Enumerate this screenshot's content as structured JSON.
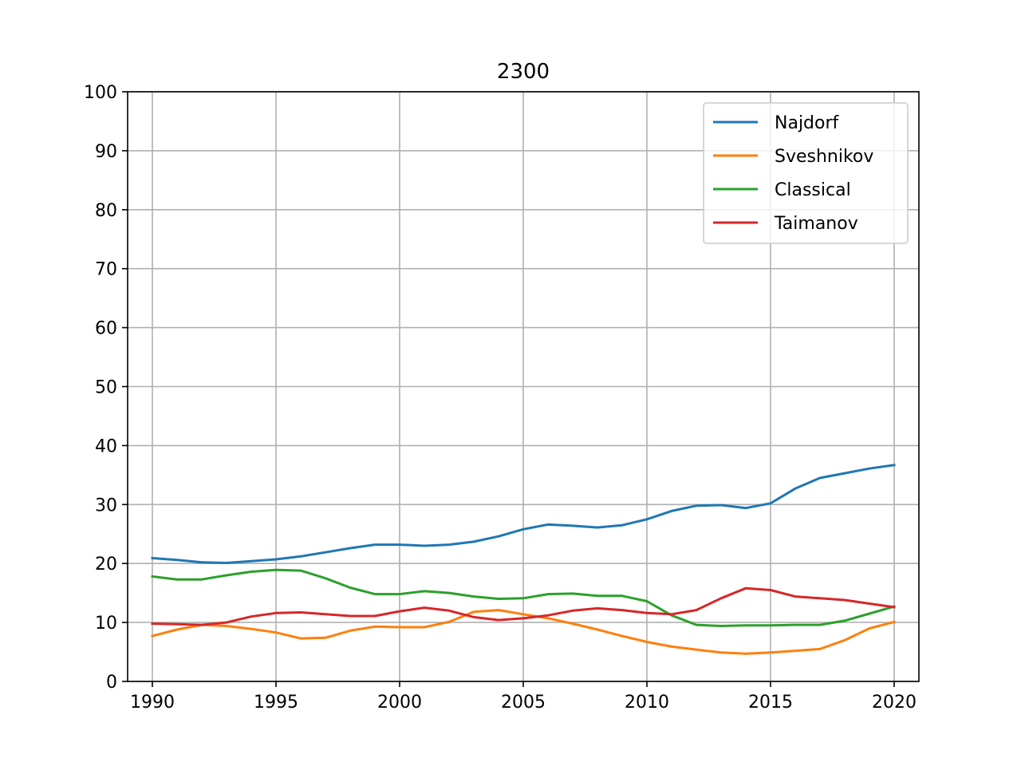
{
  "chart_data": {
    "type": "line",
    "title": "2300",
    "xlabel": "",
    "ylabel": "",
    "xlim": [
      1989,
      2021
    ],
    "ylim": [
      0,
      100
    ],
    "xticks": [
      1990,
      1995,
      2000,
      2005,
      2010,
      2015,
      2020
    ],
    "yticks": [
      0,
      10,
      20,
      30,
      40,
      50,
      60,
      70,
      80,
      90,
      100
    ],
    "grid": true,
    "legend_position": "top-right",
    "x": [
      1990,
      1991,
      1992,
      1993,
      1994,
      1995,
      1996,
      1997,
      1998,
      1999,
      2000,
      2001,
      2002,
      2003,
      2004,
      2005,
      2006,
      2007,
      2008,
      2009,
      2010,
      2011,
      2012,
      2013,
      2014,
      2015,
      2016,
      2017,
      2018,
      2019,
      2020
    ],
    "series": [
      {
        "name": "Najdorf",
        "color": "#1f77b4",
        "values": [
          20.9,
          20.6,
          20.2,
          20.1,
          20.4,
          20.7,
          21.2,
          21.9,
          22.6,
          23.2,
          23.2,
          23.0,
          23.2,
          23.7,
          24.6,
          25.8,
          26.6,
          26.4,
          26.1,
          26.5,
          27.5,
          28.9,
          29.8,
          29.9,
          29.4,
          30.2,
          32.7,
          34.5,
          35.3,
          36.1,
          36.7
        ]
      },
      {
        "name": "Sveshnikov",
        "color": "#ff7f0e",
        "values": [
          7.7,
          8.8,
          9.6,
          9.4,
          8.9,
          8.3,
          7.3,
          7.4,
          8.6,
          9.3,
          9.2,
          9.2,
          10.1,
          11.8,
          12.1,
          11.4,
          10.7,
          9.8,
          8.8,
          7.7,
          6.7,
          5.9,
          5.4,
          4.9,
          4.7,
          4.9,
          5.2,
          5.5,
          7.0,
          9.0,
          10.1
        ]
      },
      {
        "name": "Classical",
        "color": "#2ca02c",
        "values": [
          17.8,
          17.3,
          17.3,
          18.0,
          18.6,
          18.9,
          18.8,
          17.5,
          15.9,
          14.8,
          14.8,
          15.3,
          15.0,
          14.4,
          14.0,
          14.1,
          14.8,
          14.9,
          14.5,
          14.5,
          13.6,
          11.2,
          9.6,
          9.4,
          9.5,
          9.5,
          9.6,
          9.6,
          10.3,
          11.5,
          12.7
        ]
      },
      {
        "name": "Taimanov",
        "color": "#d62728",
        "values": [
          9.8,
          9.7,
          9.6,
          10.0,
          11.0,
          11.6,
          11.7,
          11.4,
          11.1,
          11.1,
          11.9,
          12.5,
          12.0,
          10.9,
          10.4,
          10.7,
          11.2,
          12.0,
          12.4,
          12.1,
          11.6,
          11.4,
          12.1,
          14.1,
          15.8,
          15.5,
          14.4,
          14.1,
          13.8,
          13.2,
          12.6
        ]
      }
    ]
  }
}
